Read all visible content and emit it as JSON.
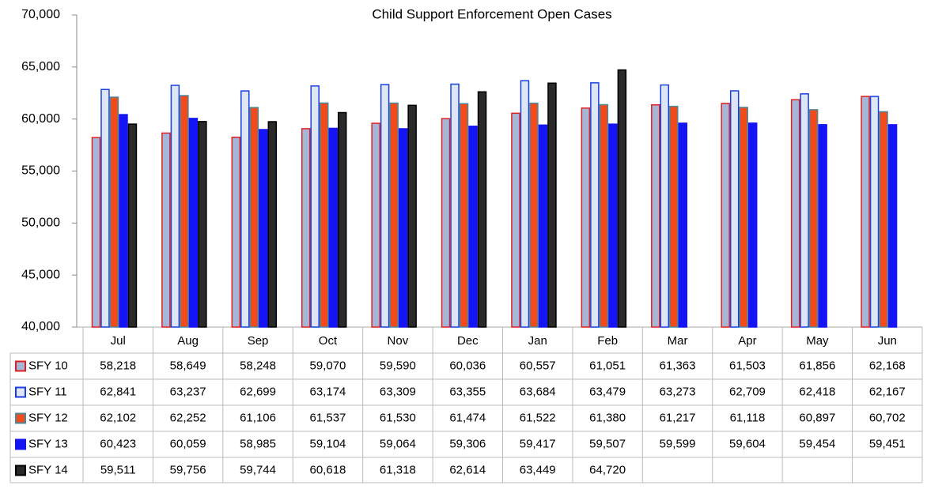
{
  "chart_data": {
    "type": "bar",
    "title": "Child Support Enforcement Open Cases",
    "categories": [
      "Jul",
      "Aug",
      "Sep",
      "Oct",
      "Nov",
      "Dec",
      "Jan",
      "Feb",
      "Mar",
      "Apr",
      "May",
      "Jun"
    ],
    "ylim": [
      40000,
      70000
    ],
    "yticks": [
      {
        "value": 40000,
        "label": "40,000"
      },
      {
        "value": 45000,
        "label": "45,000"
      },
      {
        "value": 50000,
        "label": "50,000"
      },
      {
        "value": 55000,
        "label": "55,000"
      },
      {
        "value": 60000,
        "label": "60,000"
      },
      {
        "value": 65000,
        "label": "65,000"
      },
      {
        "value": 70000,
        "label": "70,000"
      }
    ],
    "grid": false,
    "series": [
      {
        "name": "SFY 10",
        "color": "#a6b6d6",
        "edgecolor": "#e02020",
        "values": [
          58218,
          58649,
          58248,
          59070,
          59590,
          60036,
          60557,
          61051,
          61363,
          61503,
          61856,
          62168
        ],
        "value_labels": [
          "58,218",
          "58,649",
          "58,248",
          "59,070",
          "59,590",
          "60,036",
          "60,557",
          "61,051",
          "61,363",
          "61,503",
          "61,856",
          "62,168"
        ]
      },
      {
        "name": "SFY 11",
        "color": "#dde6f2",
        "edgecolor": "#1a3fe0",
        "values": [
          62841,
          63237,
          62699,
          63174,
          63309,
          63355,
          63684,
          63479,
          63273,
          62709,
          62418,
          62167
        ],
        "value_labels": [
          "62,841",
          "63,237",
          "62,699",
          "63,174",
          "63,309",
          "63,355",
          "63,684",
          "63,479",
          "63,273",
          "62,709",
          "62,418",
          "62,167"
        ]
      },
      {
        "name": "SFY 12",
        "color": "#f24a1a",
        "edgecolor": "#4a8a9a",
        "values": [
          62102,
          62252,
          61106,
          61537,
          61530,
          61474,
          61522,
          61380,
          61217,
          61118,
          60897,
          60702
        ],
        "value_labels": [
          "62,102",
          "62,252",
          "61,106",
          "61,537",
          "61,530",
          "61,474",
          "61,522",
          "61,380",
          "61,217",
          "61,118",
          "60,897",
          "60,702"
        ]
      },
      {
        "name": "SFY 13",
        "color": "#1414f5",
        "edgecolor": "#1414f5",
        "values": [
          60423,
          60059,
          58985,
          59104,
          59064,
          59306,
          59417,
          59507,
          59599,
          59604,
          59454,
          59451
        ],
        "value_labels": [
          "60,423",
          "60,059",
          "58,985",
          "59,104",
          "59,064",
          "59,306",
          "59,417",
          "59,507",
          "59,599",
          "59,604",
          "59,454",
          "59,451"
        ]
      },
      {
        "name": "SFY 14",
        "color": "#2a2a2a",
        "edgecolor": "#000000",
        "values": [
          59511,
          59756,
          59744,
          60618,
          61318,
          62614,
          63449,
          64720,
          null,
          null,
          null,
          null
        ],
        "value_labels": [
          "59,511",
          "59,756",
          "59,744",
          "60,618",
          "61,318",
          "62,614",
          "63,449",
          "64,720",
          null,
          null,
          null,
          null
        ]
      }
    ]
  }
}
